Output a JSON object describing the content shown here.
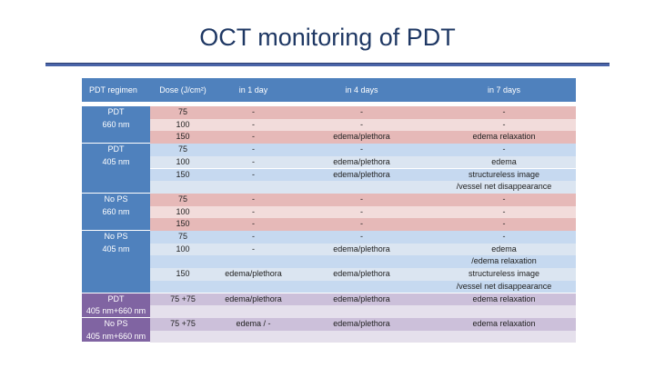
{
  "title": "OCT monitoring of PDT",
  "table": {
    "header": [
      "PDT regimen",
      "Dose (J/cm²)",
      "in 1 day",
      "in 4 days",
      "in 7 days"
    ],
    "groups": [
      {
        "label": [
          "PDT",
          "660 nm"
        ],
        "rows": [
          [
            "75",
            "-",
            "-",
            "-"
          ],
          [
            "100",
            "-",
            "-",
            "-"
          ],
          [
            "150",
            "-",
            "edema/plethora",
            "edema relaxation"
          ]
        ]
      },
      {
        "label": [
          "PDT",
          "405 nm"
        ],
        "rows": [
          [
            "75",
            "-",
            "-",
            "-"
          ],
          [
            "100",
            "-",
            "edema/plethora",
            "edema"
          ],
          [
            "150",
            "-",
            "edema/plethora",
            "structureless image"
          ],
          [
            null,
            null,
            null,
            "/vessel net disappearance"
          ]
        ]
      },
      {
        "label": [
          "No PS",
          "660 nm"
        ],
        "rows": [
          [
            "75",
            "-",
            "-",
            "-"
          ],
          [
            "100",
            "-",
            "-",
            "-"
          ],
          [
            "150",
            "-",
            "-",
            "-"
          ]
        ]
      },
      {
        "label": [
          "No PS",
          "405 nm"
        ],
        "rows": [
          [
            "75",
            "-",
            "-",
            "-"
          ],
          [
            "100",
            "-",
            "edema/plethora",
            "edema"
          ],
          [
            null,
            null,
            null,
            "/edema relaxation"
          ],
          [
            "150",
            "edema/plethora",
            "edema/plethora",
            "structureless image"
          ],
          [
            null,
            null,
            null,
            "/vessel net disappearance"
          ]
        ]
      },
      {
        "label": [
          "PDT",
          "405 nm+660 nm"
        ],
        "rows": [
          [
            "75 +75",
            "edema/plethora",
            "edema/plethora",
            "edema relaxation"
          ]
        ]
      },
      {
        "label": [
          "No PS",
          "405 nm+660 nm"
        ],
        "rows": [
          [
            "75 +75",
            "edema / -",
            "edema/plethora",
            "edema relaxation"
          ]
        ]
      }
    ]
  }
}
